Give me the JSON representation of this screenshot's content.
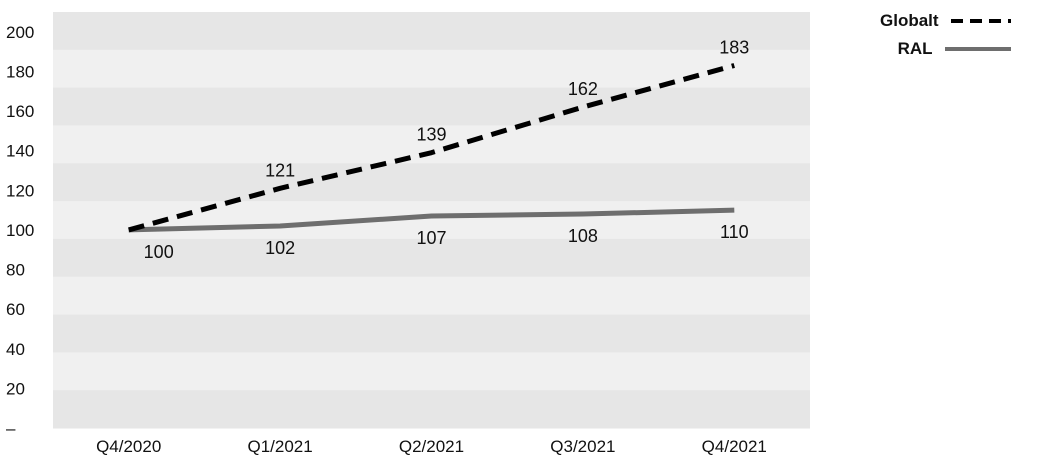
{
  "chart_data": {
    "type": "line",
    "categories": [
      "Q4/2020",
      "Q1/2021",
      "Q2/2021",
      "Q3/2021",
      "Q4/2021"
    ],
    "y_ticks": [
      "–",
      "20",
      "40",
      "60",
      "80",
      "100",
      "120",
      "140",
      "160",
      "180",
      "200"
    ],
    "ylim": [
      0,
      210
    ],
    "grid": "alternating horizontal bands",
    "legend_position": "top-right",
    "series": [
      {
        "name": "Globalt",
        "values": [
          100,
          121,
          139,
          162,
          183
        ],
        "labels": [
          "",
          "121",
          "139",
          "162",
          "183"
        ],
        "style": "dashed",
        "color": "#000000"
      },
      {
        "name": "RAL",
        "values": [
          100,
          102,
          107,
          108,
          110
        ],
        "labels": [
          "100",
          "102",
          "107",
          "108",
          "110"
        ],
        "style": "solid",
        "color": "#6e6e6e"
      }
    ]
  }
}
